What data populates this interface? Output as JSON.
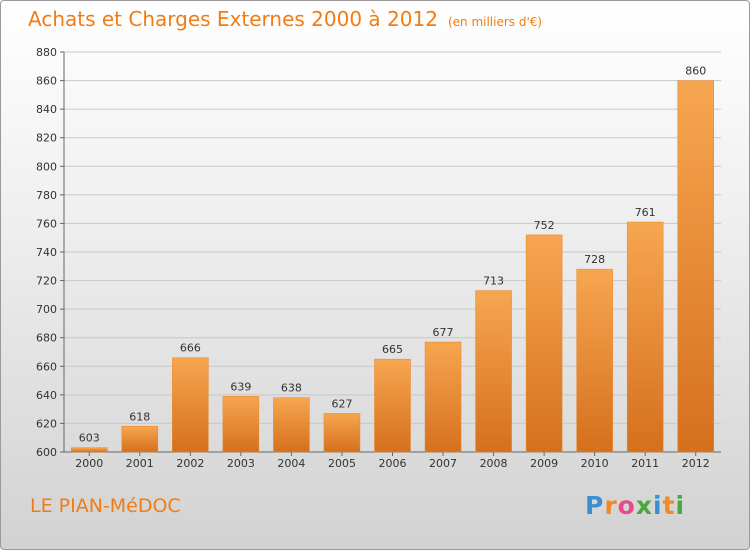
{
  "header": {
    "title": "Achats et Charges Externes 2000 à 2012",
    "unit": "(en milliers d'€)"
  },
  "commune": "LE PIAN-MéDOC",
  "logo": {
    "letters": [
      "P",
      "r",
      "o",
      "x",
      "i",
      "t",
      "i"
    ],
    "colors": [
      "#3b8fd0",
      "#f08a24",
      "#e84a8a",
      "#4aa83c",
      "#3b8fd0",
      "#f08a24",
      "#4aa83c"
    ]
  },
  "colors": {
    "bar": "#f0912f",
    "bar_top": "#f7a650",
    "bar_bottom": "#d5701d",
    "grid": "#c8c8c8",
    "accent": "#f07d14"
  },
  "chart_data": {
    "type": "bar",
    "title": "Achats et Charges Externes 2000 à 2012",
    "categories": [
      "2000",
      "2001",
      "2002",
      "2003",
      "2004",
      "2005",
      "2006",
      "2007",
      "2008",
      "2009",
      "2010",
      "2011",
      "2012"
    ],
    "values": [
      603,
      618,
      666,
      639,
      638,
      627,
      665,
      677,
      713,
      752,
      728,
      761,
      860
    ],
    "ylim": [
      600,
      880
    ],
    "yticks": [
      600,
      620,
      640,
      660,
      680,
      700,
      720,
      740,
      760,
      780,
      800,
      820,
      840,
      860,
      880
    ],
    "grid": true,
    "data_labels": true
  }
}
